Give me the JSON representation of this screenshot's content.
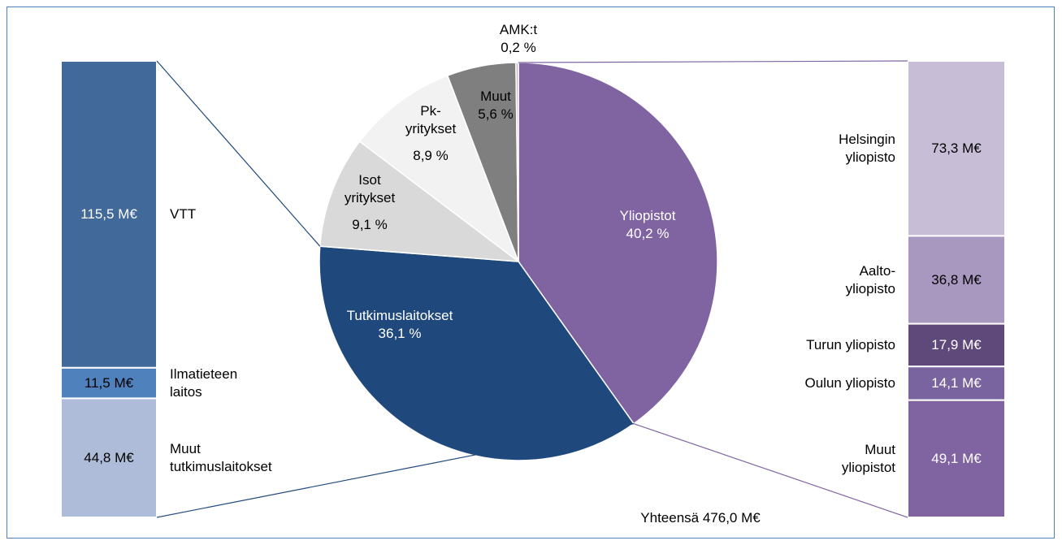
{
  "chart_data": [
    {
      "type": "pie",
      "categories": [
        "Yliopistot",
        "Tutkimuslaitokset",
        "Isot\nyritykset",
        "Pk-\nyritykset",
        "Muut",
        "AMK:t"
      ],
      "values": [
        40.2,
        36.1,
        9.1,
        8.9,
        5.6,
        0.2
      ],
      "value_labels": [
        "40,2 %",
        "36,1 %",
        "9,1 %",
        "8,9 %",
        "5,6 %",
        "0,2 %"
      ],
      "colors": [
        "#8064a2",
        "#1f497d",
        "#d9d9d9",
        "#f2f2f2",
        "#7f7f7f",
        "#bfbfbf"
      ],
      "annotation": "Yhteensä 476,0 M€"
    },
    {
      "type": "bar",
      "stacked": true,
      "categories": [
        "VTT",
        "Ilmatieteen\nlaitos",
        "Muut\ntutkimuslaitokset"
      ],
      "values": [
        115.5,
        11.5,
        44.8
      ],
      "value_labels": [
        "115,5 M€",
        "11,5 M€",
        "44,8 M€"
      ],
      "colors": [
        "#416a9a",
        "#4f81bd",
        "#aebcd9"
      ]
    },
    {
      "type": "bar",
      "stacked": true,
      "categories": [
        "Helsingin\nyliopisto",
        "Aalto-\nyliopisto",
        "Turun yliopisto",
        "Oulun yliopisto",
        "Muut\nyliopistot"
      ],
      "values": [
        73.3,
        36.8,
        17.9,
        14.1,
        49.1
      ],
      "value_labels": [
        "73,3 M€",
        "36,8 M€",
        "17,9 M€",
        "14,1 M€",
        "49,1 M€"
      ],
      "colors": [
        "#c7bdd7",
        "#a898bf",
        "#5f497a",
        "#7a649f",
        "#8064a2"
      ]
    }
  ]
}
